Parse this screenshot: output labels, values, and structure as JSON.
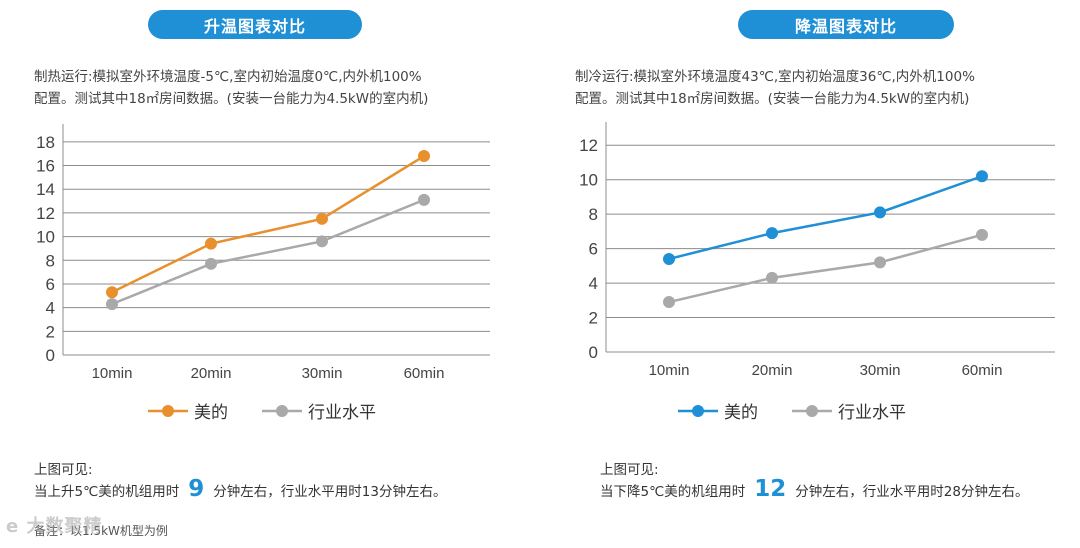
{
  "colors": {
    "midea_heat": "#e8902e",
    "midea_cool": "#1f8fd6",
    "industry": "#a9a9a9",
    "grid": "#8c8c8c",
    "title_bg": "#1f8fd6",
    "highlight": "#1f8fd6"
  },
  "left": {
    "title": "升温图表对比",
    "desc_line1": "制热运行:模拟室外环境温度-5℃,室内初始温度0℃,内外机100%",
    "desc_line2": "配置。测试其中18㎡房间数据。(安装一台能力为4.5kW的室内机)",
    "note_head": "上图可见:",
    "note_pre": "当上升5℃美的机组用时",
    "note_big": "9",
    "note_post": "分钟左右，行业水平用时13分钟左右。",
    "footnote": "备注：以1.5kW机型为例",
    "watermark": "e 大数聚精"
  },
  "right": {
    "title": "降温图表对比",
    "desc_line1": "制冷运行:模拟室外环境温度43℃,室内初始温度36℃,内外机100%",
    "desc_line2": "配置。测试其中18㎡房间数据。(安装一台能力为4.5kW的室内机)",
    "note_head": "上图可见:",
    "note_pre": "当下降5℃美的机组用时",
    "note_big": "12",
    "note_post": "分钟左右，行业水平用时28分钟左右。"
  },
  "chart_data": [
    {
      "type": "line",
      "title": "升温图表对比",
      "categories": [
        "10min",
        "20min",
        "30min",
        "60min"
      ],
      "ylim": [
        0,
        19
      ],
      "yticks": [
        0,
        2,
        4,
        6,
        8,
        10,
        12,
        14,
        16,
        18
      ],
      "series": [
        {
          "name": "美的",
          "values": [
            5.3,
            9.4,
            11.5,
            16.8
          ]
        },
        {
          "name": "行业水平",
          "values": [
            4.3,
            7.7,
            9.6,
            13.1
          ]
        }
      ],
      "legend": "bottom-center"
    },
    {
      "type": "line",
      "title": "降温图表对比",
      "categories": [
        "10min",
        "20min",
        "30min",
        "60min"
      ],
      "ylim": [
        0,
        13
      ],
      "yticks": [
        0,
        2,
        4,
        6,
        8,
        10,
        12
      ],
      "series": [
        {
          "name": "美的",
          "values": [
            5.4,
            6.9,
            8.1,
            10.2
          ]
        },
        {
          "name": "行业水平",
          "values": [
            2.9,
            4.3,
            5.2,
            6.8
          ]
        }
      ],
      "legend": "bottom-center"
    }
  ]
}
